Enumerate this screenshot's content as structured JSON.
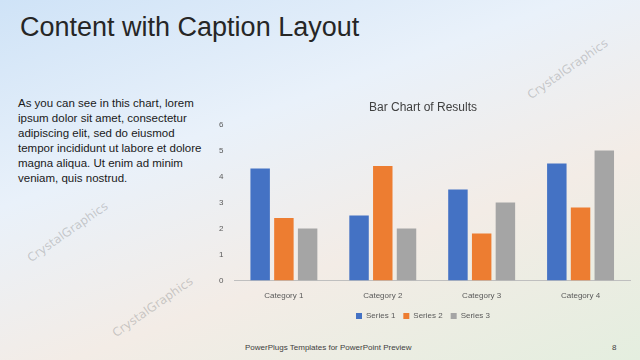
{
  "slide": {
    "title": "Content with Caption Layout",
    "caption": "As you can see in this chart, lorem ipsum dolor sit amet, consectetur adipiscing elit, sed do eiusmod tempor incididunt ut labore et dolore magna aliqua. Ut enim ad minim veniam, quis nostrud.",
    "footer": "PowerPlugs Templates for PowerPoint Preview",
    "page": 8,
    "watermark": "CrystalGraphics"
  },
  "chart_data": {
    "type": "bar",
    "title": "Bar Chart of Results",
    "categories": [
      "Category 1",
      "Category 2",
      "Category 3",
      "Category 4"
    ],
    "series": [
      {
        "name": "Series 1",
        "color": "#4472c4",
        "values": [
          4.3,
          2.5,
          3.5,
          4.5
        ]
      },
      {
        "name": "Series 2",
        "color": "#ed7d31",
        "values": [
          2.4,
          4.4,
          1.8,
          2.8
        ]
      },
      {
        "name": "Series 3",
        "color": "#a5a5a5",
        "values": [
          2,
          2,
          3,
          5
        ]
      }
    ],
    "ylim": [
      0,
      6
    ],
    "yticks": [
      0,
      1,
      2,
      3,
      4,
      5,
      6
    ],
    "grid": false,
    "legend": "bottom"
  }
}
